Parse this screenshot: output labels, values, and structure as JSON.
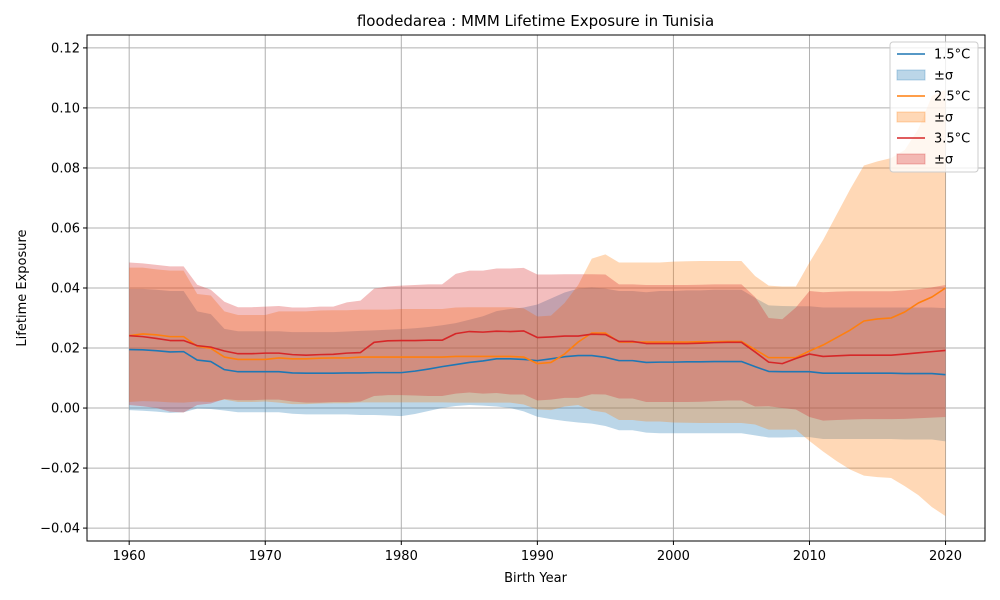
{
  "chart_data": {
    "type": "area",
    "title": "floodedarea : MMM Lifetime Exposure in Tunisia",
    "xlabel": "Birth Year",
    "ylabel": "Lifetime Exposure",
    "xlim": [
      1956.9,
      2063.1
    ],
    "ylim": [
      -0.0443,
      0.1243
    ],
    "xticks": [
      1960,
      1970,
      1980,
      1990,
      2000,
      2010,
      2020
    ],
    "yticks": [
      -0.04,
      -0.02,
      0.0,
      0.02,
      0.04,
      0.06,
      0.08,
      0.1,
      0.12
    ],
    "ytick_labels": [
      "−0.04",
      "−0.02",
      "0.00",
      "0.02",
      "0.04",
      "0.06",
      "0.08",
      "0.10",
      "0.12"
    ],
    "grid": true,
    "legend_position": "top-right",
    "x": [
      1960,
      1961,
      1962,
      1963,
      1964,
      1965,
      1966,
      1967,
      1968,
      1969,
      1970,
      1971,
      1972,
      1973,
      1974,
      1975,
      1976,
      1977,
      1978,
      1979,
      1980,
      1981,
      1982,
      1983,
      1984,
      1985,
      1986,
      1987,
      1988,
      1989,
      1990,
      1991,
      1992,
      1993,
      1994,
      1995,
      1996,
      1997,
      1998,
      1999,
      2000,
      2001,
      2002,
      2003,
      2004,
      2005,
      2006,
      2007,
      2008,
      2009,
      2010,
      2011,
      2012,
      2013,
      2014,
      2015,
      2016,
      2017,
      2018,
      2019,
      2020
    ],
    "series": [
      {
        "name": "1.5°C",
        "band_label": "±σ",
        "color": "#1f77b4",
        "values": [
          0.0195,
          0.0194,
          0.0191,
          0.0187,
          0.0188,
          0.016,
          0.0155,
          0.0128,
          0.0121,
          0.0121,
          0.0121,
          0.0121,
          0.0117,
          0.0116,
          0.0116,
          0.0116,
          0.0117,
          0.0117,
          0.0118,
          0.0118,
          0.0118,
          0.0123,
          0.013,
          0.0138,
          0.0145,
          0.0152,
          0.0157,
          0.0164,
          0.0164,
          0.0162,
          0.0158,
          0.0164,
          0.0171,
          0.0175,
          0.0175,
          0.0169,
          0.0158,
          0.0158,
          0.0152,
          0.0153,
          0.0153,
          0.0154,
          0.0154,
          0.0155,
          0.0155,
          0.0155,
          0.0138,
          0.0122,
          0.0121,
          0.0121,
          0.0121,
          0.0116,
          0.0116,
          0.0116,
          0.0116,
          0.0116,
          0.0116,
          0.0115,
          0.0115,
          0.0115,
          0.0111
        ],
        "upper": [
          0.0397,
          0.0397,
          0.0394,
          0.039,
          0.039,
          0.0322,
          0.0313,
          0.0264,
          0.0256,
          0.0256,
          0.0256,
          0.0256,
          0.0253,
          0.0253,
          0.0253,
          0.0253,
          0.0255,
          0.0257,
          0.0259,
          0.0261,
          0.0263,
          0.0266,
          0.027,
          0.0276,
          0.0283,
          0.0294,
          0.0306,
          0.0323,
          0.033,
          0.0335,
          0.0345,
          0.0365,
          0.0385,
          0.0398,
          0.0402,
          0.0398,
          0.039,
          0.039,
          0.0386,
          0.039,
          0.039,
          0.0392,
          0.0392,
          0.0394,
          0.0394,
          0.0394,
          0.0367,
          0.0342,
          0.034,
          0.0339,
          0.0339,
          0.0335,
          0.0335,
          0.0335,
          0.0335,
          0.0335,
          0.0335,
          0.0335,
          0.0335,
          0.0335,
          0.0333
        ],
        "lower": [
          -0.0007,
          -0.0009,
          -0.0012,
          -0.0016,
          -0.0014,
          -0.0002,
          -0.0003,
          -0.0008,
          -0.0014,
          -0.0014,
          -0.0014,
          -0.0014,
          -0.0019,
          -0.0021,
          -0.0021,
          -0.0021,
          -0.0021,
          -0.0023,
          -0.0023,
          -0.0025,
          -0.0027,
          -0.002,
          -0.001,
          0.0,
          0.0007,
          0.001,
          0.0008,
          0.0005,
          0.0,
          -0.0011,
          -0.0029,
          -0.0037,
          -0.0043,
          -0.0048,
          -0.0052,
          -0.006,
          -0.0074,
          -0.0074,
          -0.0082,
          -0.0084,
          -0.0084,
          -0.0084,
          -0.0084,
          -0.0084,
          -0.0084,
          -0.0084,
          -0.0091,
          -0.0098,
          -0.0098,
          -0.0097,
          -0.0097,
          -0.0103,
          -0.0103,
          -0.0103,
          -0.0103,
          -0.0103,
          -0.0103,
          -0.0105,
          -0.0105,
          -0.0105,
          -0.0111
        ]
      },
      {
        "name": "2.5°C",
        "band_label": "±σ",
        "color": "#ff7f0e",
        "values": [
          0.0241,
          0.0247,
          0.0244,
          0.0238,
          0.0238,
          0.0206,
          0.0199,
          0.017,
          0.0162,
          0.0162,
          0.0162,
          0.0167,
          0.0164,
          0.0164,
          0.0166,
          0.0167,
          0.0167,
          0.017,
          0.017,
          0.017,
          0.017,
          0.017,
          0.017,
          0.017,
          0.0172,
          0.0172,
          0.0172,
          0.0172,
          0.0172,
          0.017,
          0.0148,
          0.0152,
          0.018,
          0.022,
          0.025,
          0.025,
          0.022,
          0.022,
          0.022,
          0.022,
          0.022,
          0.022,
          0.0221,
          0.0221,
          0.0222,
          0.0222,
          0.0195,
          0.0168,
          0.0168,
          0.0168,
          0.019,
          0.021,
          0.0235,
          0.026,
          0.029,
          0.0297,
          0.03,
          0.032,
          0.035,
          0.037,
          0.04
        ],
        "upper": [
          0.0468,
          0.0468,
          0.0462,
          0.0458,
          0.0458,
          0.038,
          0.0375,
          0.0322,
          0.031,
          0.031,
          0.031,
          0.0322,
          0.0322,
          0.0322,
          0.0325,
          0.0326,
          0.0326,
          0.0328,
          0.0328,
          0.0328,
          0.033,
          0.033,
          0.033,
          0.033,
          0.0335,
          0.0336,
          0.0336,
          0.0336,
          0.0336,
          0.0332,
          0.0305,
          0.0308,
          0.035,
          0.041,
          0.0498,
          0.0512,
          0.0485,
          0.0485,
          0.0485,
          0.0485,
          0.0488,
          0.0489,
          0.049,
          0.049,
          0.049,
          0.049,
          0.044,
          0.0408,
          0.0405,
          0.0405,
          0.0485,
          0.056,
          0.0645,
          0.073,
          0.0808,
          0.0822,
          0.0833,
          0.086,
          0.093,
          0.104,
          0.106
        ],
        "lower": [
          0.002,
          0.0023,
          0.0022,
          0.0019,
          0.0018,
          0.0022,
          0.002,
          0.0028,
          0.002,
          0.002,
          0.0022,
          0.0018,
          0.0013,
          0.0013,
          0.0015,
          0.0016,
          0.0016,
          0.0019,
          0.0019,
          0.0019,
          0.0019,
          0.0019,
          0.0019,
          0.0019,
          0.0018,
          0.0018,
          0.0018,
          0.0018,
          0.0018,
          0.0012,
          -0.0005,
          -0.0007,
          0.0005,
          0.001,
          -0.0008,
          -0.0015,
          -0.004,
          -0.004,
          -0.0045,
          -0.0045,
          -0.0048,
          -0.0049,
          -0.005,
          -0.005,
          -0.005,
          -0.005,
          -0.0055,
          -0.0072,
          -0.0072,
          -0.0072,
          -0.011,
          -0.0145,
          -0.0177,
          -0.0205,
          -0.0225,
          -0.023,
          -0.0233,
          -0.026,
          -0.029,
          -0.033,
          -0.036
        ]
      },
      {
        "name": "3.5°C",
        "band_label": "±σ",
        "color": "#d62728",
        "values": [
          0.0241,
          0.0238,
          0.0232,
          0.0225,
          0.0225,
          0.0208,
          0.0203,
          0.019,
          0.0181,
          0.0181,
          0.0183,
          0.0183,
          0.0178,
          0.0176,
          0.0178,
          0.0179,
          0.0183,
          0.0185,
          0.0219,
          0.0224,
          0.0225,
          0.0225,
          0.0226,
          0.0226,
          0.0248,
          0.0255,
          0.0253,
          0.0256,
          0.0255,
          0.0257,
          0.0235,
          0.0237,
          0.024,
          0.024,
          0.0246,
          0.0245,
          0.0222,
          0.0222,
          0.0215,
          0.0215,
          0.0215,
          0.0215,
          0.0216,
          0.0218,
          0.0219,
          0.0219,
          0.0187,
          0.0153,
          0.0148,
          0.0165,
          0.018,
          0.0172,
          0.0174,
          0.0176,
          0.0176,
          0.0176,
          0.0176,
          0.018,
          0.0184,
          0.0188,
          0.0192
        ],
        "upper": [
          0.0485,
          0.0482,
          0.0477,
          0.0472,
          0.0472,
          0.0411,
          0.0394,
          0.0354,
          0.0336,
          0.0336,
          0.0338,
          0.034,
          0.0335,
          0.0335,
          0.0338,
          0.0338,
          0.0352,
          0.0358,
          0.0398,
          0.0405,
          0.0408,
          0.041,
          0.0412,
          0.0412,
          0.0447,
          0.0458,
          0.0458,
          0.0465,
          0.0465,
          0.0467,
          0.0445,
          0.0445,
          0.0446,
          0.0446,
          0.0446,
          0.0445,
          0.0412,
          0.0412,
          0.041,
          0.041,
          0.041,
          0.041,
          0.0411,
          0.0412,
          0.0412,
          0.0412,
          0.037,
          0.03,
          0.0296,
          0.0335,
          0.039,
          0.0386,
          0.0388,
          0.0389,
          0.0389,
          0.0389,
          0.0389,
          0.0392,
          0.0396,
          0.0402,
          0.041
        ],
        "lower": [
          0.001,
          0.0006,
          0.0,
          -0.0012,
          -0.0015,
          0.001,
          0.0015,
          0.003,
          0.0026,
          0.0026,
          0.0028,
          0.0028,
          0.0022,
          0.0018,
          0.0018,
          0.002,
          0.002,
          0.0022,
          0.004,
          0.0043,
          0.0043,
          0.0042,
          0.004,
          0.004,
          0.0048,
          0.0052,
          0.0048,
          0.005,
          0.0045,
          0.0045,
          0.0025,
          0.0028,
          0.0034,
          0.0034,
          0.0046,
          0.0045,
          0.0032,
          0.0032,
          0.002,
          0.002,
          0.002,
          0.002,
          0.0021,
          0.0023,
          0.0025,
          0.0025,
          0.0005,
          0.0006,
          0.0,
          -0.0005,
          -0.003,
          -0.0042,
          -0.004,
          -0.0038,
          -0.0037,
          -0.0037,
          -0.0037,
          -0.0036,
          -0.0034,
          -0.0032,
          -0.003
        ]
      }
    ]
  }
}
